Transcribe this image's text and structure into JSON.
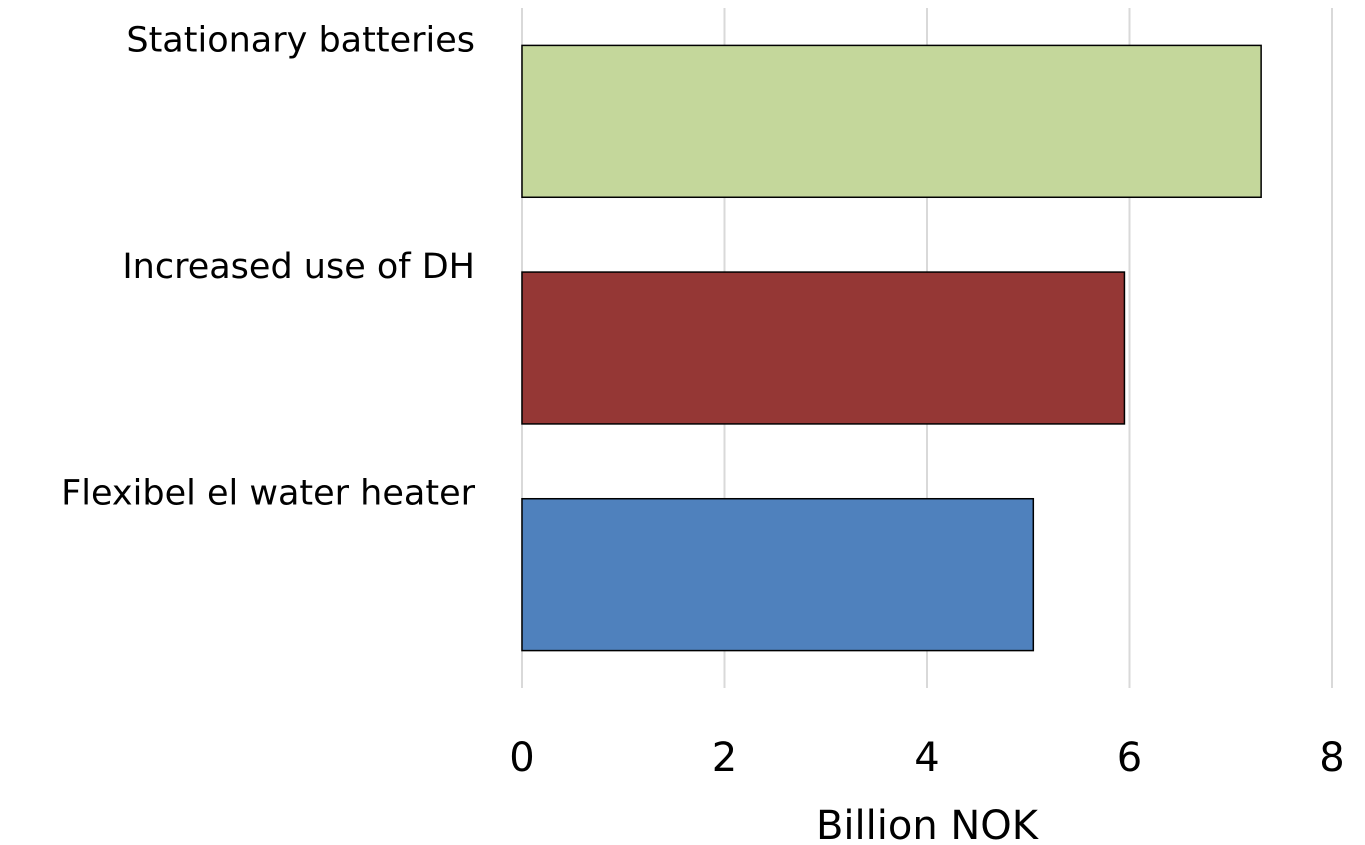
{
  "chart_data": {
    "type": "bar",
    "orientation": "horizontal",
    "categories": [
      "Stationary batteries",
      "Increased use of DH",
      "Flexibel el water heater"
    ],
    "values": [
      7.3,
      5.95,
      5.05
    ],
    "colors": [
      "#c4d79b",
      "#953735",
      "#4f81bd"
    ],
    "x_label": "Billion NOK",
    "xlim": [
      0,
      8
    ],
    "xticks": [
      0,
      2,
      4,
      6,
      8
    ],
    "grid": true
  }
}
